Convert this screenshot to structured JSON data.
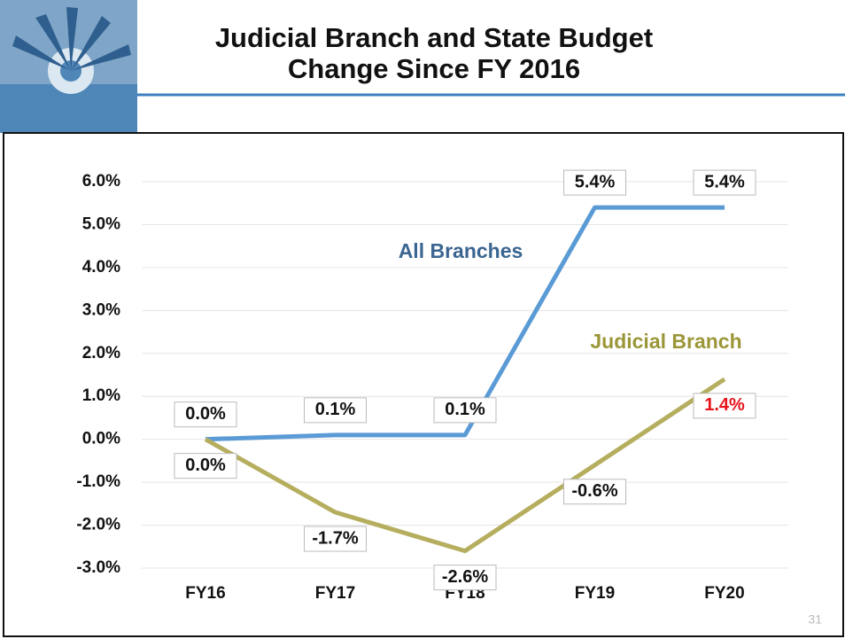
{
  "chart_data": {
    "type": "line",
    "title": "Judicial Branch and State Budget",
    "subtitle": "Change Since FY 2016",
    "categories": [
      "FY16",
      "FY17",
      "FY18",
      "FY19",
      "FY20"
    ],
    "series": [
      {
        "name": "All Branches",
        "color": "#5b9bd5",
        "values": [
          0,
          0.1,
          0.1,
          5.4,
          5.4
        ],
        "value_labels": [
          "0.0%",
          "0.1%",
          "0.1%",
          "5.4%",
          "5.4%"
        ],
        "label_colors": [
          "#111111",
          "#111111",
          "#111111",
          "#111111",
          "#111111"
        ]
      },
      {
        "name": "Judicial Branch",
        "color": "#b5ae5e",
        "values": [
          0,
          -1.7,
          -2.6,
          -0.6,
          1.4
        ],
        "value_labels": [
          "0.0%",
          "-1.7%",
          "-2.6%",
          "-0.6%",
          "1.4%"
        ],
        "label_colors": [
          "#111111",
          "#111111",
          "#111111",
          "#111111",
          "#e8141a"
        ]
      }
    ],
    "ylim": [
      -3,
      6
    ],
    "yticks": [
      {
        "value": -3,
        "label": "-3.0%"
      },
      {
        "value": -2,
        "label": "-2.0%"
      },
      {
        "value": -1,
        "label": "-1.0%"
      },
      {
        "value": 0,
        "label": "0.0%"
      },
      {
        "value": 1,
        "label": "1.0%"
      },
      {
        "value": 2,
        "label": "2.0%"
      },
      {
        "value": 3,
        "label": "3.0%"
      },
      {
        "value": 4,
        "label": "4.0%"
      },
      {
        "value": 5,
        "label": "5.0%"
      },
      {
        "value": 6,
        "label": "6.0%"
      }
    ],
    "grid": true
  },
  "page_number": "31"
}
